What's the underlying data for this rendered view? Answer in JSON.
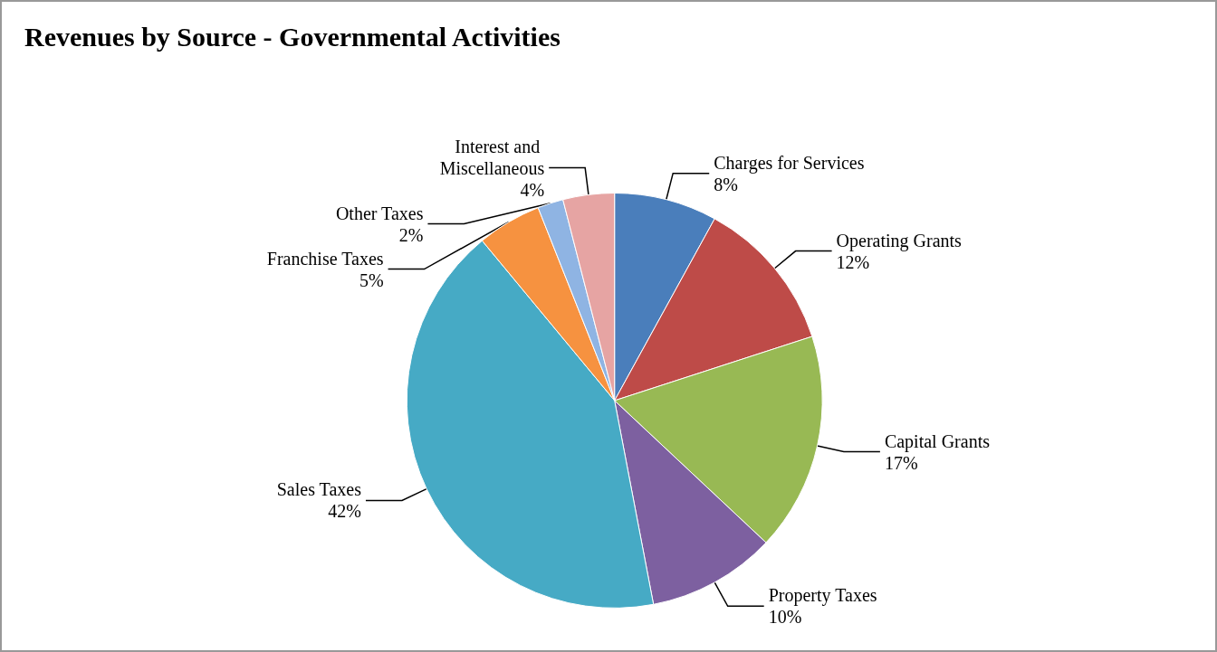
{
  "chart_data": {
    "type": "pie",
    "title": "Revenues by Source - Governmental Activities",
    "categories": [
      "Charges for Services",
      "Operating Grants",
      "Capital Grants",
      "Property Taxes",
      "Sales Taxes",
      "Franchise Taxes",
      "Other Taxes",
      "Interest and Miscellaneous"
    ],
    "values": [
      8,
      12,
      17,
      10,
      42,
      5,
      2,
      4
    ],
    "colors": [
      "#4a7ebb",
      "#be4b48",
      "#98b954",
      "#7d60a0",
      "#46aac5",
      "#f69240",
      "#8fb4e3",
      "#e6a4a3"
    ],
    "value_labels": [
      "8%",
      "12%",
      "17%",
      "10%",
      "42%",
      "5%",
      "2%",
      "4%"
    ],
    "legend": false
  }
}
